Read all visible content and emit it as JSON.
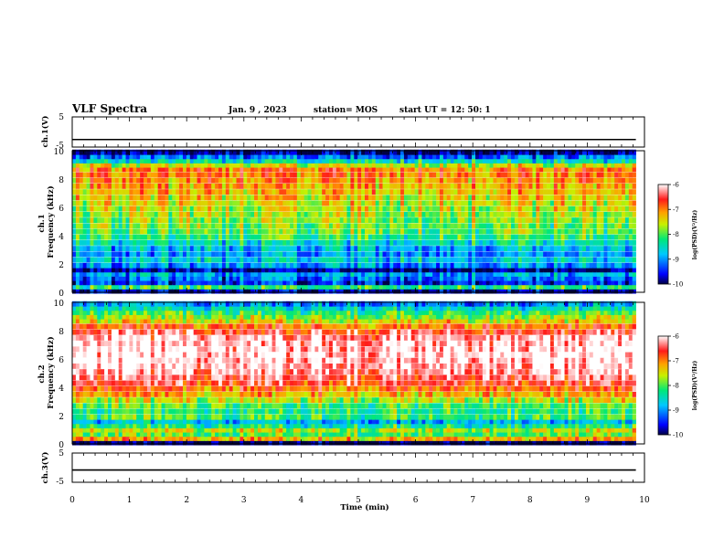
{
  "header": {
    "title": "VLF Spectra",
    "date": "Jan. 9 , 2023",
    "station": "station= MOS",
    "start": "start UT =  12: 50: 1"
  },
  "colors": {
    "scale": [
      "#000044",
      "#0000ff",
      "#00c8ff",
      "#00e878",
      "#c8f000",
      "#ffa000",
      "#ff1a1a",
      "#ffffff"
    ],
    "line": "#000000"
  },
  "chart_data": [
    {
      "id": "ch1-waveform",
      "type": "line",
      "ylabel": "ch.1(V)",
      "ylim": [
        -5,
        5
      ],
      "y_ticks": [
        "5",
        "-5"
      ],
      "x": [
        0,
        10
      ],
      "y": [
        -2.5,
        -2.5
      ]
    },
    {
      "id": "ch1-spectrogram",
      "type": "heatmap",
      "ylabel": "ch.1\nFrequency (kHz)",
      "ylim": [
        0,
        10
      ],
      "xlim": [
        0,
        10
      ],
      "y_ticks": [
        "0",
        "2",
        "4",
        "6",
        "8",
        "10"
      ],
      "data_end_min": 9.85,
      "freq_levels": [
        {
          "f": 0.1,
          "v": -9.8
        },
        {
          "f": 0.4,
          "v": -8.2
        },
        {
          "f": 0.7,
          "v": -9.5
        },
        {
          "f": 1.0,
          "v": -9.2
        },
        {
          "f": 1.3,
          "v": -8.9
        },
        {
          "f": 1.6,
          "v": -9.9
        },
        {
          "f": 1.9,
          "v": -9.0
        },
        {
          "f": 2.3,
          "v": -8.7
        },
        {
          "f": 2.7,
          "v": -9.0
        },
        {
          "f": 3.1,
          "v": -8.8
        },
        {
          "f": 3.5,
          "v": -8.5
        },
        {
          "f": 3.9,
          "v": -8.2
        },
        {
          "f": 4.3,
          "v": -8.0
        },
        {
          "f": 4.7,
          "v": -7.9
        },
        {
          "f": 5.1,
          "v": -7.8
        },
        {
          "f": 5.5,
          "v": -7.7
        },
        {
          "f": 5.9,
          "v": -7.6
        },
        {
          "f": 6.3,
          "v": -7.5
        },
        {
          "f": 6.7,
          "v": -7.4
        },
        {
          "f": 7.1,
          "v": -7.3
        },
        {
          "f": 7.5,
          "v": -7.2
        },
        {
          "f": 7.9,
          "v": -7.1
        },
        {
          "f": 8.3,
          "v": -7.0
        },
        {
          "f": 8.7,
          "v": -7.0
        },
        {
          "f": 9.0,
          "v": -7.6
        },
        {
          "f": 9.3,
          "v": -8.5
        },
        {
          "f": 9.6,
          "v": -9.2
        },
        {
          "f": 9.9,
          "v": -9.9
        }
      ]
    },
    {
      "id": "ch2-spectrogram",
      "type": "heatmap",
      "ylabel": "ch.2\nFrequency (kHz)",
      "ylim": [
        0,
        10
      ],
      "xlim": [
        0,
        10
      ],
      "y_ticks": [
        "0",
        "2",
        "4",
        "6",
        "8",
        "10"
      ],
      "data_end_min": 9.85,
      "freq_levels": [
        {
          "f": 0.1,
          "v": -10.0
        },
        {
          "f": 0.4,
          "v": -7.2
        },
        {
          "f": 0.7,
          "v": -8.0
        },
        {
          "f": 1.0,
          "v": -7.6
        },
        {
          "f": 1.3,
          "v": -8.3
        },
        {
          "f": 1.6,
          "v": -8.8
        },
        {
          "f": 1.9,
          "v": -8.1
        },
        {
          "f": 2.3,
          "v": -8.2
        },
        {
          "f": 2.7,
          "v": -8.0
        },
        {
          "f": 3.1,
          "v": -7.6
        },
        {
          "f": 3.5,
          "v": -7.2
        },
        {
          "f": 3.9,
          "v": -6.9
        },
        {
          "f": 4.3,
          "v": -6.6
        },
        {
          "f": 4.7,
          "v": -6.4
        },
        {
          "f": 5.1,
          "v": -6.2
        },
        {
          "f": 5.5,
          "v": -6.1
        },
        {
          "f": 5.9,
          "v": -6.05
        },
        {
          "f": 6.3,
          "v": -6.0
        },
        {
          "f": 6.7,
          "v": -6.05
        },
        {
          "f": 7.1,
          "v": -6.1
        },
        {
          "f": 7.5,
          "v": -6.2
        },
        {
          "f": 7.9,
          "v": -6.5
        },
        {
          "f": 8.3,
          "v": -6.9
        },
        {
          "f": 8.7,
          "v": -7.4
        },
        {
          "f": 9.0,
          "v": -7.8
        },
        {
          "f": 9.3,
          "v": -8.1
        },
        {
          "f": 9.6,
          "v": -8.5
        },
        {
          "f": 9.9,
          "v": -9.0
        }
      ]
    },
    {
      "id": "ch3-waveform",
      "type": "line",
      "ylabel": "ch.3(V)",
      "ylim": [
        -5,
        5
      ],
      "y_ticks": [
        "5",
        "-5"
      ],
      "x": [
        0,
        10
      ],
      "y": [
        -0.8,
        -0.8
      ]
    }
  ],
  "x_axis": {
    "label": "Time (min)",
    "ticks": [
      "0",
      "1",
      "2",
      "3",
      "4",
      "5",
      "6",
      "7",
      "8",
      "9",
      "10"
    ],
    "range": [
      0,
      10
    ]
  },
  "colorbars": [
    {
      "label": "log(PSD)(V²/Hz)",
      "ticks": [
        "-6",
        "-7",
        "-8",
        "-9",
        "-10"
      ],
      "range": [
        -10,
        -6
      ]
    },
    {
      "label": "log(PSD)(V²/Hz)",
      "ticks": [
        "-6",
        "-7",
        "-8",
        "-9",
        "-10"
      ],
      "range": [
        -10,
        -6
      ]
    }
  ]
}
